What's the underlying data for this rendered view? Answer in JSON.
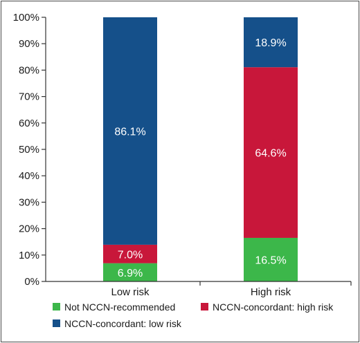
{
  "chart_data": {
    "type": "bar",
    "stacked": true,
    "categories": [
      "Low risk",
      "High risk"
    ],
    "ylim": [
      0,
      100
    ],
    "y_ticks": [
      "0%",
      "10%",
      "20%",
      "30%",
      "40%",
      "50%",
      "60%",
      "70%",
      "80%",
      "90%",
      "100%"
    ],
    "grid": false,
    "legend_position": "bottom",
    "series": [
      {
        "name": "Not NCCN-recommended",
        "values": [
          6.9,
          16.5
        ],
        "labels": [
          "6.9%",
          "16.5%"
        ],
        "color": "#3cb74a"
      },
      {
        "name": "NCCN-concordant: high risk",
        "values": [
          7.0,
          64.6
        ],
        "labels": [
          "7.0%",
          "64.6%"
        ],
        "color": "#c8173a"
      },
      {
        "name": "NCCN-concordant: low risk",
        "values": [
          86.1,
          18.9
        ],
        "labels": [
          "86.1%",
          "18.9%"
        ],
        "color": "#15508a"
      }
    ]
  }
}
